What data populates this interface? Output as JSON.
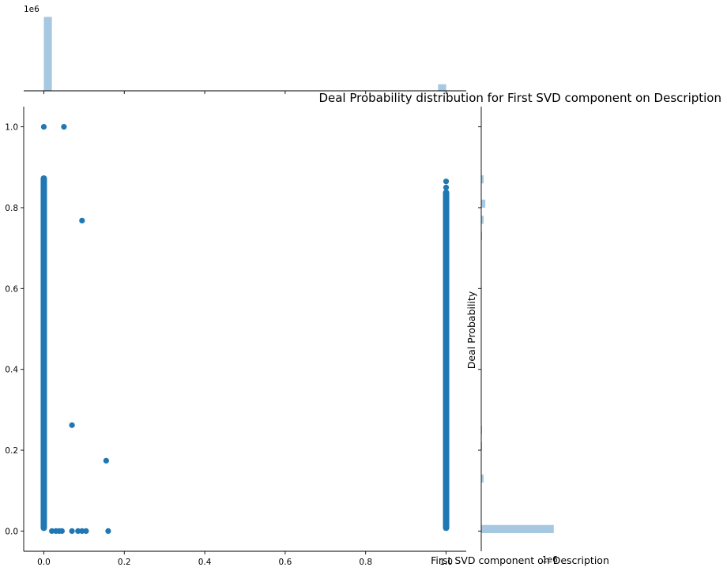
{
  "chart_data": {
    "type": "scatter",
    "title": "Deal Probability distribution for First SVD component on Description",
    "xlabel": "First SVD component on Description",
    "ylabel": "Deal Probability",
    "xlim": [
      -0.05,
      1.05
    ],
    "ylim": [
      -0.05,
      1.05
    ],
    "x_ticks": [
      "0.0",
      "0.2",
      "0.4",
      "0.6",
      "0.8",
      "1.0"
    ],
    "y_ticks": [
      "0.0",
      "0.2",
      "0.4",
      "0.6",
      "0.8",
      "1.0"
    ],
    "grid": false,
    "point_color": "#1f77b4",
    "hist_color": "#a6c8e0",
    "marginal_x_offset_label": "1e6",
    "marginal_y_offset_label": "1e6",
    "columns": [
      {
        "x": 0.0,
        "y_min": 0.0,
        "y_max": 0.88
      },
      {
        "x": 1.0,
        "y_min": 0.0,
        "y_max": 0.845
      }
    ],
    "points": [
      {
        "x": 0.0,
        "y": 1.0
      },
      {
        "x": 0.05,
        "y": 1.0
      },
      {
        "x": 0.095,
        "y": 0.768
      },
      {
        "x": 0.07,
        "y": 0.262
      },
      {
        "x": 0.155,
        "y": 0.174
      },
      {
        "x": 0.02,
        "y": 0.0
      },
      {
        "x": 0.03,
        "y": 0.0
      },
      {
        "x": 0.038,
        "y": 0.0
      },
      {
        "x": 0.045,
        "y": 0.0
      },
      {
        "x": 0.07,
        "y": 0.0
      },
      {
        "x": 0.085,
        "y": 0.0
      },
      {
        "x": 0.095,
        "y": 0.0
      },
      {
        "x": 0.105,
        "y": 0.0
      },
      {
        "x": 0.16,
        "y": 0.0
      },
      {
        "x": 1.0,
        "y": 0.865
      },
      {
        "x": 1.0,
        "y": 0.85
      }
    ],
    "x_hist": [
      {
        "x0": 0.0,
        "x1": 0.02,
        "count": 1.8
      },
      {
        "x0": 0.98,
        "x1": 1.0,
        "count": 0.16
      }
    ],
    "y_hist": [
      {
        "y0": -0.005,
        "y1": 0.015,
        "count": 1.8
      },
      {
        "y0": 0.12,
        "y1": 0.14,
        "count": 0.06
      },
      {
        "y0": 0.2,
        "y1": 0.22,
        "count": 0.02
      },
      {
        "y0": 0.24,
        "y1": 0.26,
        "count": 0.02
      },
      {
        "y0": 0.72,
        "y1": 0.74,
        "count": 0.02
      },
      {
        "y0": 0.76,
        "y1": 0.78,
        "count": 0.06
      },
      {
        "y0": 0.8,
        "y1": 0.82,
        "count": 0.1
      },
      {
        "y0": 0.86,
        "y1": 0.88,
        "count": 0.06
      }
    ]
  }
}
